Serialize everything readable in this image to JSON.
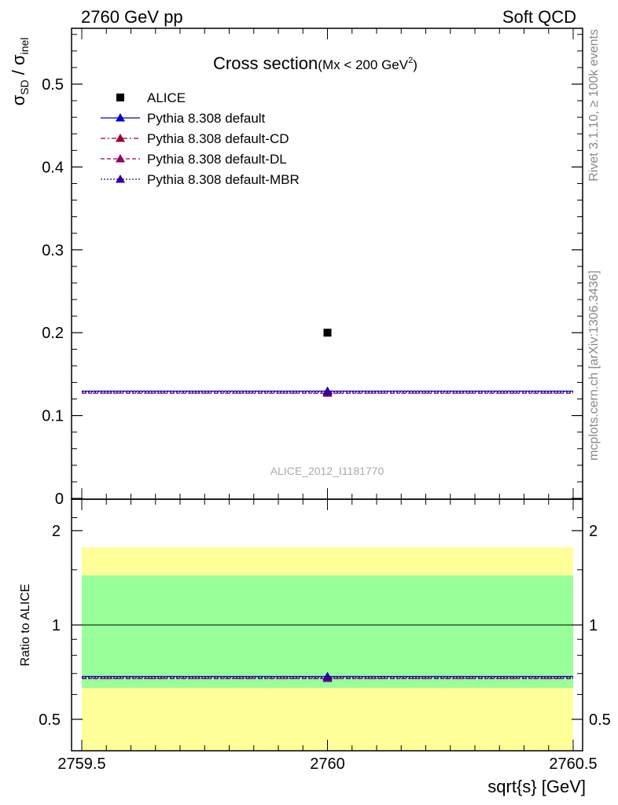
{
  "header": {
    "left_label": "2760 GeV pp",
    "right_label": "Soft QCD"
  },
  "side_labels": {
    "rivet": "Rivet 3.1.10, ≥ 100k events",
    "mcplots": "mcplots.cern.ch [arXiv:1306.3436]"
  },
  "analysis_id": "ALICE_2012_I1181770",
  "colors": {
    "alice": "#000000",
    "default": "#0000cc",
    "cd": "#990033",
    "dl": "#990066",
    "mbr": "#330099",
    "band_inner": "#99ff99",
    "band_outer": "#ffff99"
  },
  "chart_data": [
    {
      "type": "scatter",
      "panel": "main",
      "title": "Cross section",
      "title_note_prefix": "(Mx < 200 GeV",
      "title_note_sup": "2",
      "title_note_suffix": ")",
      "ylabel_main": "σ",
      "ylabel_sub1": "SD",
      "ylabel_sep": " / σ",
      "ylabel_sub2": "inel",
      "xlim": [
        2759.5,
        2760.5
      ],
      "ylim": [
        0,
        0.57
      ],
      "y_ticks": [
        0,
        0.1,
        0.2,
        0.3,
        0.4,
        0.5
      ],
      "y_tick_labels": [
        "0",
        "0.1",
        "0.2",
        "0.3",
        "0.4",
        "0.5"
      ],
      "legend_placement": "top-left",
      "series": [
        {
          "name": "ALICE",
          "x": [
            2760
          ],
          "y": [
            0.2
          ],
          "marker": "square",
          "line": "none",
          "color": "#000000"
        },
        {
          "name": "Pythia 8.308 default",
          "x": [
            2760
          ],
          "y": [
            0.1295
          ],
          "marker": "triangle",
          "line": "solid",
          "color": "#0000cc"
        },
        {
          "name": "Pythia 8.308 default-CD",
          "x": [
            2760
          ],
          "y": [
            0.127
          ],
          "marker": "triangle",
          "line": "dashdot",
          "color": "#990033"
        },
        {
          "name": "Pythia 8.308 default-DL",
          "x": [
            2760
          ],
          "y": [
            0.127
          ],
          "marker": "triangle",
          "line": "dashed",
          "color": "#990066"
        },
        {
          "name": "Pythia 8.308 default-MBR",
          "x": [
            2760
          ],
          "y": [
            0.1285
          ],
          "marker": "triangle",
          "line": "dotted",
          "color": "#330099"
        }
      ]
    },
    {
      "type": "scatter",
      "panel": "ratio",
      "ylabel": "Ratio to ALICE",
      "xlabel": "sqrt{s} [GeV]",
      "xlim": [
        2759.5,
        2760.5
      ],
      "ylim": [
        0.35,
        2.25
      ],
      "x_ticks": [
        2759.5,
        2760,
        2760.5
      ],
      "x_tick_labels": [
        "2759.5",
        "2760",
        "2760.5"
      ],
      "y_ticks": [
        0.5,
        1,
        2
      ],
      "y_tick_labels": [
        "0.5",
        "1",
        "2"
      ],
      "bands": {
        "inner": [
          0.63,
          1.44
        ],
        "outer": [
          0.35,
          1.77
        ]
      },
      "series": [
        {
          "name": "Pythia 8.308 default",
          "x": [
            2760
          ],
          "y": [
            0.685
          ],
          "color": "#0000cc",
          "line": "solid"
        },
        {
          "name": "Pythia 8.308 default-CD",
          "x": [
            2760
          ],
          "y": [
            0.675
          ],
          "color": "#990033",
          "line": "dashdot"
        },
        {
          "name": "Pythia 8.308 default-DL",
          "x": [
            2760
          ],
          "y": [
            0.675
          ],
          "color": "#990066",
          "line": "dashed"
        },
        {
          "name": "Pythia 8.308 default-MBR",
          "x": [
            2760
          ],
          "y": [
            0.68
          ],
          "color": "#330099",
          "line": "dotted"
        }
      ]
    }
  ]
}
